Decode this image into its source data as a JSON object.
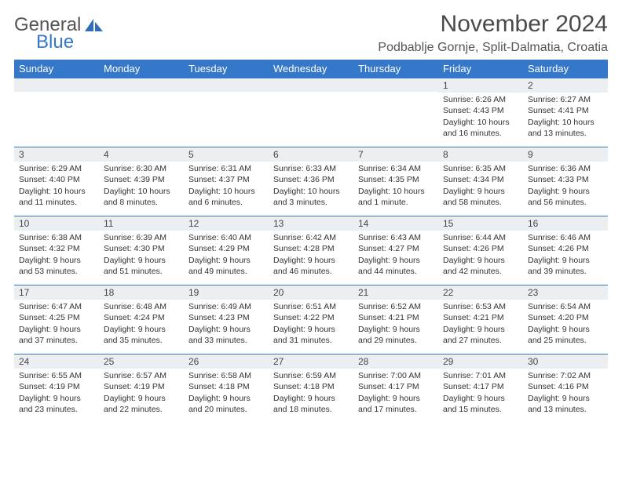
{
  "logo": {
    "line1": "General",
    "line2": "Blue",
    "logo_color": "#3578c9",
    "text_color": "#555555"
  },
  "header": {
    "title": "November 2024",
    "location": "Podbablje Gornje, Split-Dalmatia, Croatia"
  },
  "columns": [
    "Sunday",
    "Monday",
    "Tuesday",
    "Wednesday",
    "Thursday",
    "Friday",
    "Saturday"
  ],
  "style": {
    "header_bg": "#3578c9",
    "header_fg": "#ffffff",
    "band_bg": "#eceff2",
    "band_border": "#3578c9",
    "body_bg": "#ffffff",
    "font_family": "Arial",
    "daynum_fontsize": 12,
    "cell_fontsize": 10.5,
    "title_fontsize": 30,
    "location_fontsize": 16,
    "col_header_fontsize": 13
  },
  "weeks": [
    [
      null,
      null,
      null,
      null,
      null,
      {
        "n": "1",
        "sr": "Sunrise: 6:26 AM",
        "ss": "Sunset: 4:43 PM",
        "d1": "Daylight: 10 hours",
        "d2": "and 16 minutes."
      },
      {
        "n": "2",
        "sr": "Sunrise: 6:27 AM",
        "ss": "Sunset: 4:41 PM",
        "d1": "Daylight: 10 hours",
        "d2": "and 13 minutes."
      }
    ],
    [
      {
        "n": "3",
        "sr": "Sunrise: 6:29 AM",
        "ss": "Sunset: 4:40 PM",
        "d1": "Daylight: 10 hours",
        "d2": "and 11 minutes."
      },
      {
        "n": "4",
        "sr": "Sunrise: 6:30 AM",
        "ss": "Sunset: 4:39 PM",
        "d1": "Daylight: 10 hours",
        "d2": "and 8 minutes."
      },
      {
        "n": "5",
        "sr": "Sunrise: 6:31 AM",
        "ss": "Sunset: 4:37 PM",
        "d1": "Daylight: 10 hours",
        "d2": "and 6 minutes."
      },
      {
        "n": "6",
        "sr": "Sunrise: 6:33 AM",
        "ss": "Sunset: 4:36 PM",
        "d1": "Daylight: 10 hours",
        "d2": "and 3 minutes."
      },
      {
        "n": "7",
        "sr": "Sunrise: 6:34 AM",
        "ss": "Sunset: 4:35 PM",
        "d1": "Daylight: 10 hours",
        "d2": "and 1 minute."
      },
      {
        "n": "8",
        "sr": "Sunrise: 6:35 AM",
        "ss": "Sunset: 4:34 PM",
        "d1": "Daylight: 9 hours",
        "d2": "and 58 minutes."
      },
      {
        "n": "9",
        "sr": "Sunrise: 6:36 AM",
        "ss": "Sunset: 4:33 PM",
        "d1": "Daylight: 9 hours",
        "d2": "and 56 minutes."
      }
    ],
    [
      {
        "n": "10",
        "sr": "Sunrise: 6:38 AM",
        "ss": "Sunset: 4:32 PM",
        "d1": "Daylight: 9 hours",
        "d2": "and 53 minutes."
      },
      {
        "n": "11",
        "sr": "Sunrise: 6:39 AM",
        "ss": "Sunset: 4:30 PM",
        "d1": "Daylight: 9 hours",
        "d2": "and 51 minutes."
      },
      {
        "n": "12",
        "sr": "Sunrise: 6:40 AM",
        "ss": "Sunset: 4:29 PM",
        "d1": "Daylight: 9 hours",
        "d2": "and 49 minutes."
      },
      {
        "n": "13",
        "sr": "Sunrise: 6:42 AM",
        "ss": "Sunset: 4:28 PM",
        "d1": "Daylight: 9 hours",
        "d2": "and 46 minutes."
      },
      {
        "n": "14",
        "sr": "Sunrise: 6:43 AM",
        "ss": "Sunset: 4:27 PM",
        "d1": "Daylight: 9 hours",
        "d2": "and 44 minutes."
      },
      {
        "n": "15",
        "sr": "Sunrise: 6:44 AM",
        "ss": "Sunset: 4:26 PM",
        "d1": "Daylight: 9 hours",
        "d2": "and 42 minutes."
      },
      {
        "n": "16",
        "sr": "Sunrise: 6:46 AM",
        "ss": "Sunset: 4:26 PM",
        "d1": "Daylight: 9 hours",
        "d2": "and 39 minutes."
      }
    ],
    [
      {
        "n": "17",
        "sr": "Sunrise: 6:47 AM",
        "ss": "Sunset: 4:25 PM",
        "d1": "Daylight: 9 hours",
        "d2": "and 37 minutes."
      },
      {
        "n": "18",
        "sr": "Sunrise: 6:48 AM",
        "ss": "Sunset: 4:24 PM",
        "d1": "Daylight: 9 hours",
        "d2": "and 35 minutes."
      },
      {
        "n": "19",
        "sr": "Sunrise: 6:49 AM",
        "ss": "Sunset: 4:23 PM",
        "d1": "Daylight: 9 hours",
        "d2": "and 33 minutes."
      },
      {
        "n": "20",
        "sr": "Sunrise: 6:51 AM",
        "ss": "Sunset: 4:22 PM",
        "d1": "Daylight: 9 hours",
        "d2": "and 31 minutes."
      },
      {
        "n": "21",
        "sr": "Sunrise: 6:52 AM",
        "ss": "Sunset: 4:21 PM",
        "d1": "Daylight: 9 hours",
        "d2": "and 29 minutes."
      },
      {
        "n": "22",
        "sr": "Sunrise: 6:53 AM",
        "ss": "Sunset: 4:21 PM",
        "d1": "Daylight: 9 hours",
        "d2": "and 27 minutes."
      },
      {
        "n": "23",
        "sr": "Sunrise: 6:54 AM",
        "ss": "Sunset: 4:20 PM",
        "d1": "Daylight: 9 hours",
        "d2": "and 25 minutes."
      }
    ],
    [
      {
        "n": "24",
        "sr": "Sunrise: 6:55 AM",
        "ss": "Sunset: 4:19 PM",
        "d1": "Daylight: 9 hours",
        "d2": "and 23 minutes."
      },
      {
        "n": "25",
        "sr": "Sunrise: 6:57 AM",
        "ss": "Sunset: 4:19 PM",
        "d1": "Daylight: 9 hours",
        "d2": "and 22 minutes."
      },
      {
        "n": "26",
        "sr": "Sunrise: 6:58 AM",
        "ss": "Sunset: 4:18 PM",
        "d1": "Daylight: 9 hours",
        "d2": "and 20 minutes."
      },
      {
        "n": "27",
        "sr": "Sunrise: 6:59 AM",
        "ss": "Sunset: 4:18 PM",
        "d1": "Daylight: 9 hours",
        "d2": "and 18 minutes."
      },
      {
        "n": "28",
        "sr": "Sunrise: 7:00 AM",
        "ss": "Sunset: 4:17 PM",
        "d1": "Daylight: 9 hours",
        "d2": "and 17 minutes."
      },
      {
        "n": "29",
        "sr": "Sunrise: 7:01 AM",
        "ss": "Sunset: 4:17 PM",
        "d1": "Daylight: 9 hours",
        "d2": "and 15 minutes."
      },
      {
        "n": "30",
        "sr": "Sunrise: 7:02 AM",
        "ss": "Sunset: 4:16 PM",
        "d1": "Daylight: 9 hours",
        "d2": "and 13 minutes."
      }
    ]
  ]
}
